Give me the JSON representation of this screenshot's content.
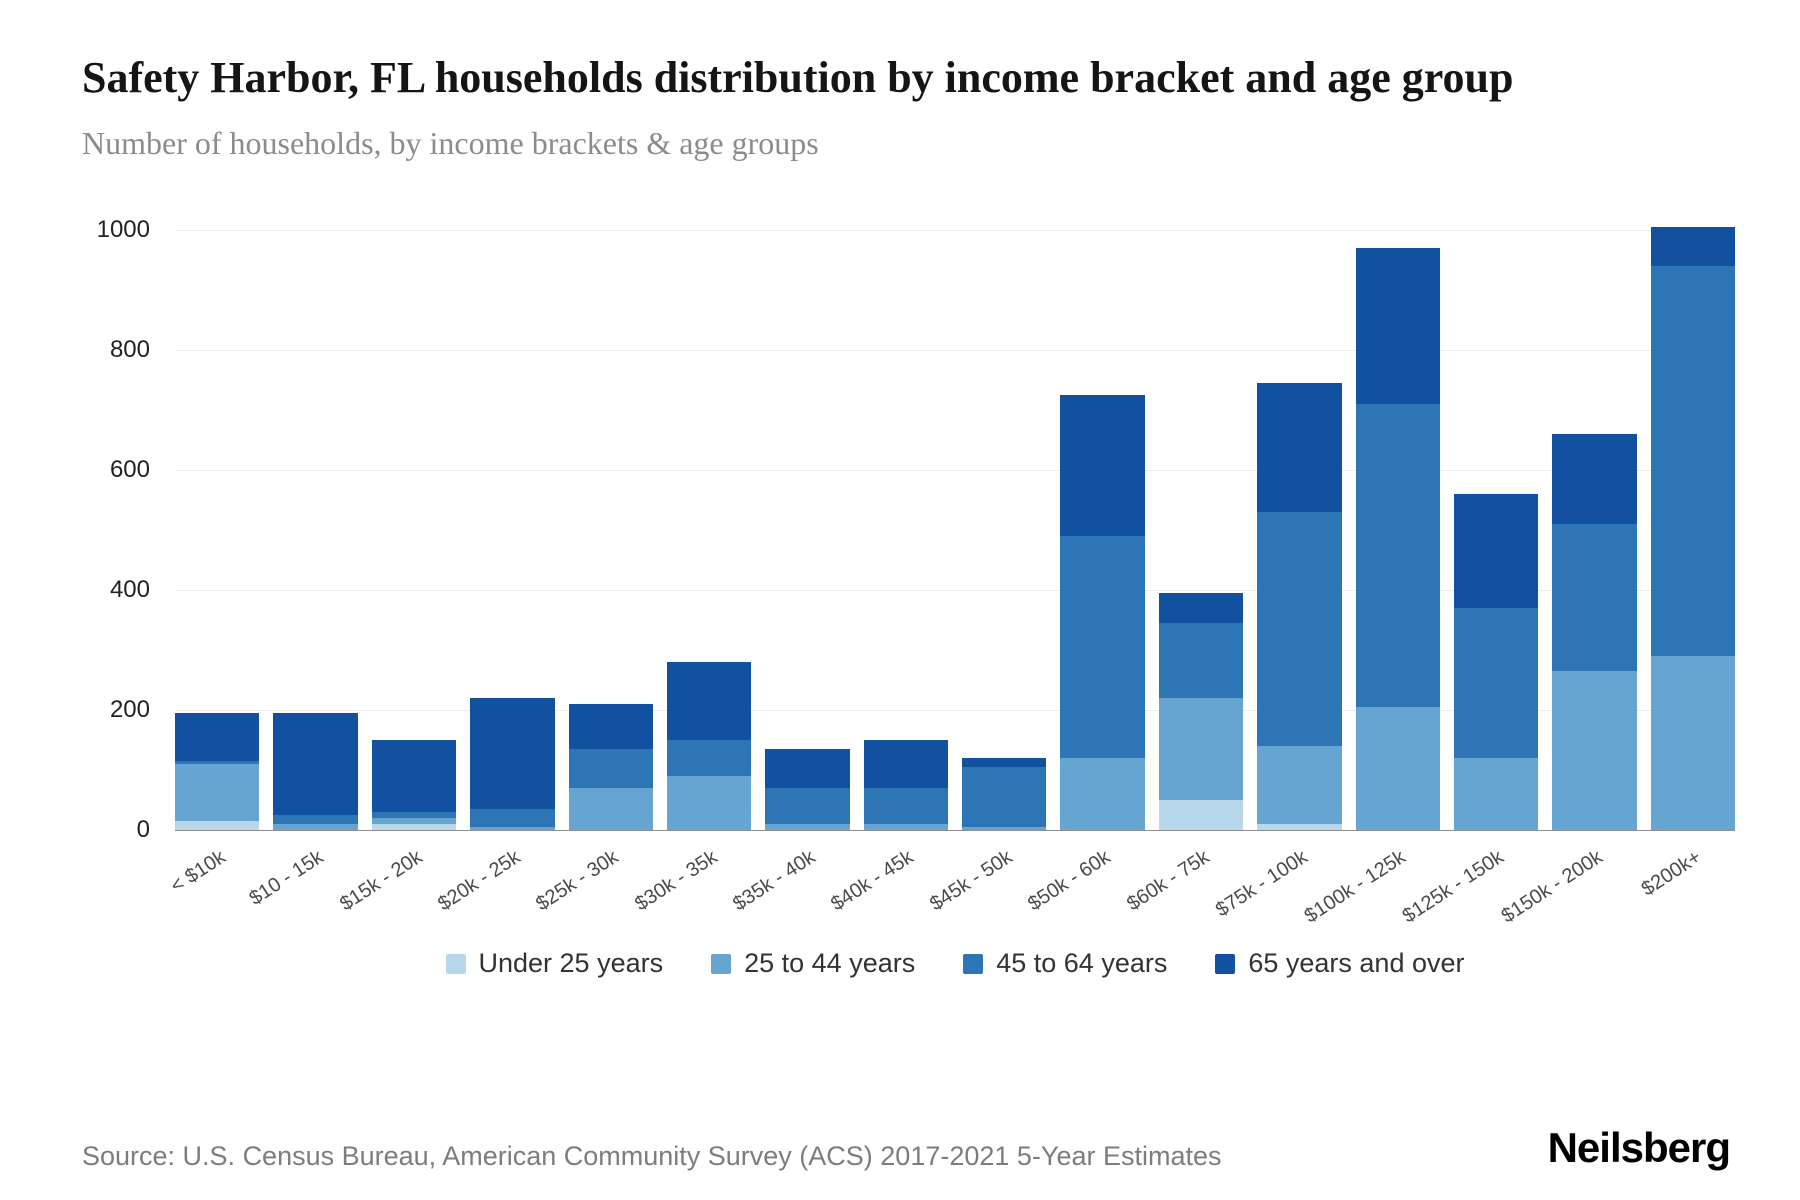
{
  "header": {
    "title": "Safety Harbor, FL households distribution by income bracket and age group",
    "subtitle": "Number of households, by income brackets & age groups"
  },
  "chart_data": {
    "type": "bar",
    "stacked": true,
    "title": "Safety Harbor, FL households distribution by income bracket and age group",
    "xlabel": "",
    "ylabel": "Number of households",
    "ylim": [
      0,
      1000
    ],
    "yticks": [
      0,
      200,
      400,
      600,
      800,
      1000
    ],
    "grid": true,
    "legend_position": "bottom",
    "categories": [
      "< $10k",
      "$10 - 15k",
      "$15k - 20k",
      "$20k - 25k",
      "$25k - 30k",
      "$30k - 35k",
      "$35k - 40k",
      "$40k - 45k",
      "$45k - 50k",
      "$50k - 60k",
      "$60k - 75k",
      "$75k - 100k",
      "$100k - 125k",
      "$125k - 150k",
      "$150k - 200k",
      "$200k+"
    ],
    "series": [
      {
        "name": "Under 25 years",
        "color": "#b9d7ea",
        "values": [
          15,
          0,
          10,
          0,
          0,
          0,
          0,
          0,
          0,
          0,
          50,
          10,
          0,
          0,
          0,
          0
        ]
      },
      {
        "name": "25 to 44 years",
        "color": "#66a5d2",
        "values": [
          95,
          10,
          10,
          5,
          70,
          90,
          10,
          10,
          5,
          120,
          170,
          130,
          205,
          120,
          265,
          290
        ]
      },
      {
        "name": "45 to 64 years",
        "color": "#2e75b6",
        "values": [
          5,
          15,
          10,
          30,
          65,
          60,
          60,
          60,
          100,
          370,
          125,
          390,
          505,
          250,
          245,
          650
        ]
      },
      {
        "name": "65 years and over",
        "color": "#11519f",
        "values": [
          80,
          170,
          120,
          185,
          75,
          130,
          65,
          80,
          15,
          235,
          50,
          215,
          260,
          190,
          150,
          65
        ]
      }
    ],
    "totals": [
      195,
      195,
      150,
      220,
      210,
      280,
      135,
      150,
      120,
      725,
      395,
      745,
      970,
      560,
      660,
      1005
    ]
  },
  "footer": {
    "source": "Source: U.S. Census Bureau, American Community Survey (ACS) 2017-2021 5-Year Estimates",
    "brand": "Neilsberg"
  }
}
